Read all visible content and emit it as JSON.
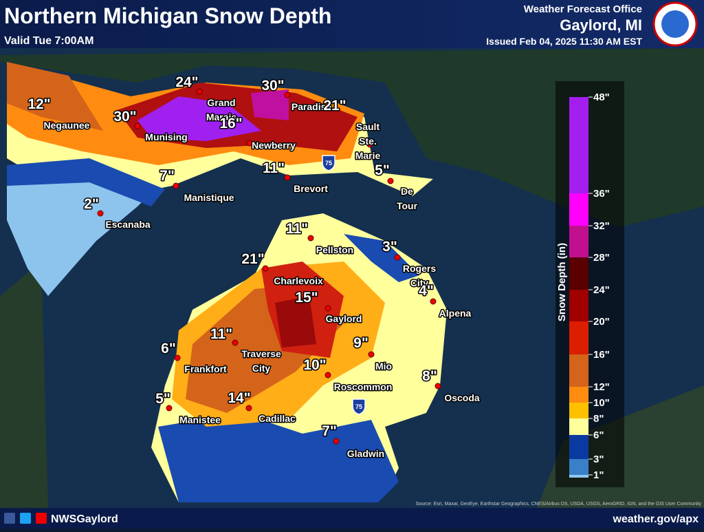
{
  "header": {
    "title": "Northern Michigan Snow Depth",
    "valid": "Valid  Tue 7:00AM",
    "office": "Weather Forecast Office",
    "location": "Gaylord, MI",
    "issued": "Issued Feb 04, 2025 11:30 AM EST"
  },
  "map": {
    "cities": [
      {
        "name": "Negaunee",
        "value": "12\""
      },
      {
        "name": "Munising",
        "value": "30\""
      },
      {
        "name": "Grand Marais",
        "value": "24\""
      },
      {
        "name": "Newberry",
        "value": "16\""
      },
      {
        "name": "Paradise",
        "value": "30\""
      },
      {
        "name": "Sault Ste. Marie",
        "value": "21\""
      },
      {
        "name": "Manistique",
        "value": "7\""
      },
      {
        "name": "Escanaba",
        "value": "2\""
      },
      {
        "name": "Brevort",
        "value": "11\""
      },
      {
        "name": "De Tour",
        "value": "5\""
      },
      {
        "name": "Pellston",
        "value": "11\""
      },
      {
        "name": "Rogers City",
        "value": "3\""
      },
      {
        "name": "Charlevoix",
        "value": "21\""
      },
      {
        "name": "Alpena",
        "value": "4\""
      },
      {
        "name": "Gaylord",
        "value": "15\""
      },
      {
        "name": "Traverse City",
        "value": "11\""
      },
      {
        "name": "Frankfort",
        "value": "6\""
      },
      {
        "name": "Mio",
        "value": "9\""
      },
      {
        "name": "Roscommon",
        "value": "10\""
      },
      {
        "name": "Oscoda",
        "value": "8\""
      },
      {
        "name": "Manistee",
        "value": "5\""
      },
      {
        "name": "Cadillac",
        "value": "14\""
      },
      {
        "name": "Gladwin",
        "value": "7\""
      }
    ],
    "highway_shields": [
      "75",
      "75"
    ]
  },
  "legend": {
    "title": "Snow Depth (in)",
    "ticks": [
      {
        "label": "48\"",
        "color": "#a41ef0"
      },
      {
        "label": "36\"",
        "color": "#ff00ff"
      },
      {
        "label": "32\"",
        "color": "#c0108f"
      },
      {
        "label": "28\"",
        "color": "#5a0000"
      },
      {
        "label": "24\"",
        "color": "#a00000"
      },
      {
        "label": "20\"",
        "color": "#dc1e00"
      },
      {
        "label": "16\"",
        "color": "#d4641a"
      },
      {
        "label": "12\"",
        "color": "#ff8c10"
      },
      {
        "label": "10\"",
        "color": "#ffc000"
      },
      {
        "label": "8\"",
        "color": "#ffff9c"
      },
      {
        "label": "6\"",
        "color": "#0a3aa0"
      },
      {
        "label": "3\"",
        "color": "#3a80c8"
      },
      {
        "label": "1\"",
        "color": "#90c8f0"
      }
    ]
  },
  "footer": {
    "handle": "NWSGaylord",
    "url": "weather.gov/apx",
    "source": "Source: Esri, Maxar, GeoEye, Earthstar Geographics, CNES/Airbus DS, USDA, USGS, AeroGRID, IGN, and the GIS User Community"
  }
}
